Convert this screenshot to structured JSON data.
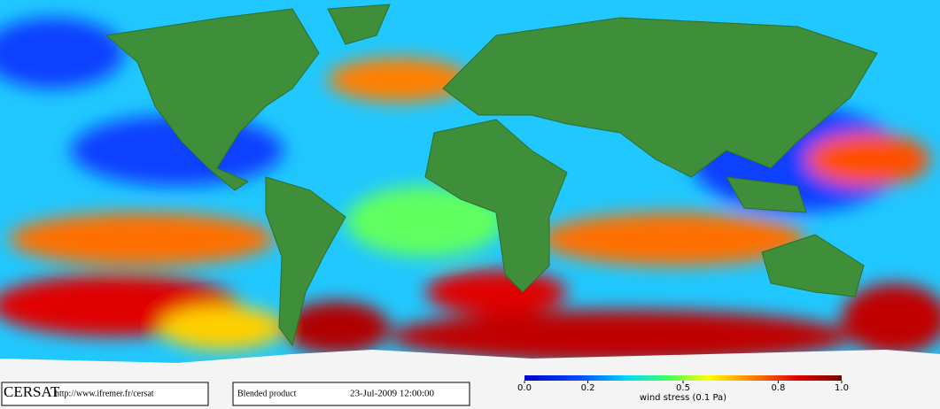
{
  "header": {
    "logo": "CERSAT",
    "url": "http://www.ifremer.fr/cersat",
    "product": "Blended product",
    "date": "23-Jul-2009 12:00:00"
  },
  "colorbar": {
    "label": "wind stress (0.1 Pa)",
    "lim": [
      0,
      1
    ],
    "ticks": [
      {
        "value": 0,
        "label": "0.0"
      },
      0.2,
      0.5,
      0.8,
      {
        "value": 1,
        "label": "1.0"
      }
    ]
  }
}
